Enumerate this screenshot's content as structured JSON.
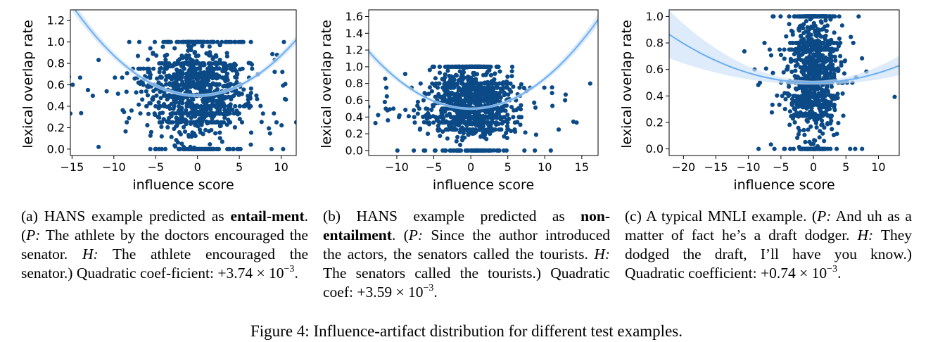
{
  "panels": [
    {
      "id": "a",
      "xlabel": "influence score",
      "ylabel": "lexical overlap rate",
      "xticks": [
        -15,
        -10,
        -5,
        0,
        5,
        10
      ],
      "yticks": [
        0.0,
        0.2,
        0.4,
        0.6,
        0.8,
        1.0,
        1.2
      ],
      "xlim": [
        -15.2,
        11.8
      ],
      "ylim": [
        -0.06,
        1.3
      ],
      "fit_a": 0.00374,
      "fit_b": 0.0,
      "fit_c": 0.5,
      "xspread": 2.8,
      "seed": 11,
      "caption": {
        "label": "(a) HANS example predicted as ",
        "bold": "entail-ment",
        "p_label": "P:",
        "premise": "The athlete by the doctors encouraged the senator.",
        "h_label": "H:",
        "hypothesis": "The athlete encouraged the senator.",
        "coef_text": "Quadratic coef-ficient:",
        "coef_value": "+3.74 × 10",
        "coef_exp": "−3"
      }
    },
    {
      "id": "b",
      "xlabel": "influence score",
      "ylabel": "lexical overlap rate",
      "xticks": [
        -10,
        -5,
        0,
        5,
        10,
        15
      ],
      "yticks": [
        0.0,
        0.2,
        0.4,
        0.6,
        0.8,
        1.0,
        1.2,
        1.4,
        1.6
      ],
      "xlim": [
        -13.8,
        17.2
      ],
      "ylim": [
        -0.06,
        1.68
      ],
      "fit_a": 0.00359,
      "fit_b": 0.0,
      "fit_c": 0.5,
      "xspread": 2.6,
      "seed": 23,
      "caption": {
        "label": "(b) HANS example predicted as ",
        "bold": "non-entailment",
        "p_label": "P:",
        "premise": "Since the author introduced the actors, the senators called the tourists.",
        "h_label": "H:",
        "hypothesis": "The senators called the tourists.",
        "coef_text": "Quadratic coef:",
        "coef_value": "+3.59 × 10",
        "coef_exp": "−3"
      }
    },
    {
      "id": "c",
      "xlabel": "influence score",
      "ylabel": "lexical overlap rate",
      "xticks": [
        -20,
        -15,
        -10,
        -5,
        0,
        5,
        10
      ],
      "yticks": [
        0.0,
        0.2,
        0.4,
        0.6,
        0.8,
        1.0
      ],
      "xlim": [
        -22.2,
        13.2
      ],
      "ylim": [
        -0.05,
        1.05
      ],
      "fit_a": 0.00074,
      "fit_b": 0.0,
      "fit_c": 0.5,
      "xspread": 1.8,
      "seed": 37,
      "caption": {
        "label": "(c) A typical MNLI example.",
        "bold": "",
        "p_label": "P:",
        "premise": "And uh as a matter of fact he’s a draft dodger.",
        "h_label": "H:",
        "hypothesis": "They dodged the draft, I’ll have you know.",
        "coef_text": "Quadratic coefficient:",
        "coef_value": "+0.74 ×",
        "coef_value2": "10",
        "coef_exp": "−3"
      }
    }
  ],
  "figure_caption": "Figure 4: Influence-artifact distribution for different test examples.",
  "colors": {
    "points": "#0b4a86",
    "fit_line": "#6aaef0",
    "band": "#cfe3f8"
  },
  "chart_data": [
    {
      "type": "scatter",
      "panel": "a",
      "xlabel": "influence score",
      "ylabel": "lexical overlap rate",
      "xlim": [
        -15.2,
        11.8
      ],
      "ylim": [
        -0.06,
        1.3
      ],
      "fit": {
        "type": "quadratic",
        "quadratic_coefficient": 0.00374,
        "vertex": [
          0,
          0.5
        ]
      },
      "note_points": "dense cloud centered near x=0, y in [0,1]"
    },
    {
      "type": "scatter",
      "panel": "b",
      "xlabel": "influence score",
      "ylabel": "lexical overlap rate",
      "xlim": [
        -13.8,
        17.2
      ],
      "ylim": [
        -0.06,
        1.68
      ],
      "fit": {
        "type": "quadratic",
        "quadratic_coefficient": 0.00359,
        "vertex": [
          0,
          0.5
        ]
      }
    },
    {
      "type": "scatter",
      "panel": "c",
      "xlabel": "influence score",
      "ylabel": "lexical overlap rate",
      "xlim": [
        -22.2,
        13.2
      ],
      "ylim": [
        -0.05,
        1.05
      ],
      "fit": {
        "type": "quadratic",
        "quadratic_coefficient": 0.00074,
        "vertex": [
          0,
          0.5
        ]
      }
    }
  ]
}
